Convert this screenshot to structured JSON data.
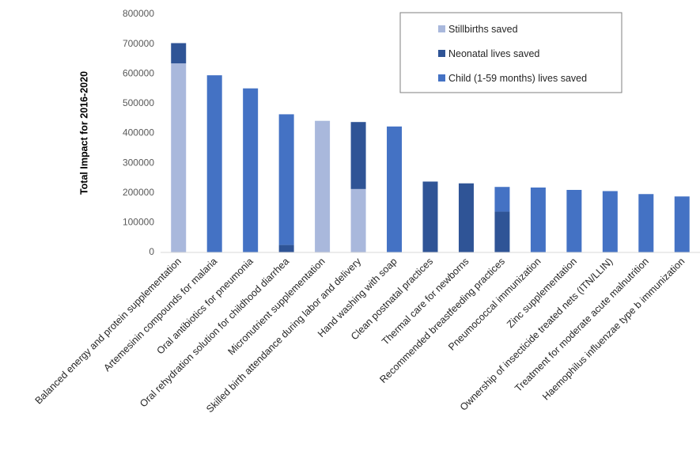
{
  "chart_data": {
    "type": "bar",
    "stacked": true,
    "title": "",
    "xlabel": "",
    "ylabel": "Total Impact  for 2016-2020",
    "ylim": [
      0,
      800000
    ],
    "yticks": [
      0,
      100000,
      200000,
      300000,
      400000,
      500000,
      600000,
      700000,
      800000
    ],
    "ytick_labels": [
      "0",
      "100000",
      "200000",
      "300000",
      "400000",
      "500000",
      "600000",
      "700000",
      "800000"
    ],
    "grid": false,
    "legend_position": "top-right",
    "categories": [
      "Balanced energy and protein supplementation",
      "Artemesinin compounds for malaria",
      "Oral antibiotics for pneumonia",
      "Oral rehydration solution for childhood diarrhea",
      "Micronutrient supplementation",
      "Skilled birth attendance during labor and delivery",
      "Hand washing with soap",
      "Clean postnatal practices",
      "Thermal care for newborns",
      "Recommended breastfeeding practices",
      "Pneumococcal immunization",
      "Zinc supplementation",
      "Ownership of insecticide treated nets (ITN/LLIN)",
      "Treatment for moderate acute malnutrition",
      "Haemophilus influenzae type b immunization"
    ],
    "series": [
      {
        "name": "Stillbirths saved",
        "color": "#a9b8dc",
        "values": [
          635000,
          0,
          0,
          0,
          442000,
          213000,
          0,
          0,
          0,
          0,
          0,
          0,
          0,
          0,
          0
        ]
      },
      {
        "name": "Neonatal lives saved",
        "color": "#2f5496",
        "values": [
          68000,
          0,
          0,
          25000,
          0,
          225000,
          0,
          238000,
          232000,
          137000,
          0,
          0,
          0,
          0,
          0
        ]
      },
      {
        "name": "Child (1-59 months) lives saved",
        "color": "#4472c4",
        "values": [
          0,
          595000,
          551000,
          439000,
          0,
          0,
          423000,
          0,
          0,
          83000,
          218000,
          210000,
          206000,
          196000,
          188000
        ]
      }
    ]
  }
}
